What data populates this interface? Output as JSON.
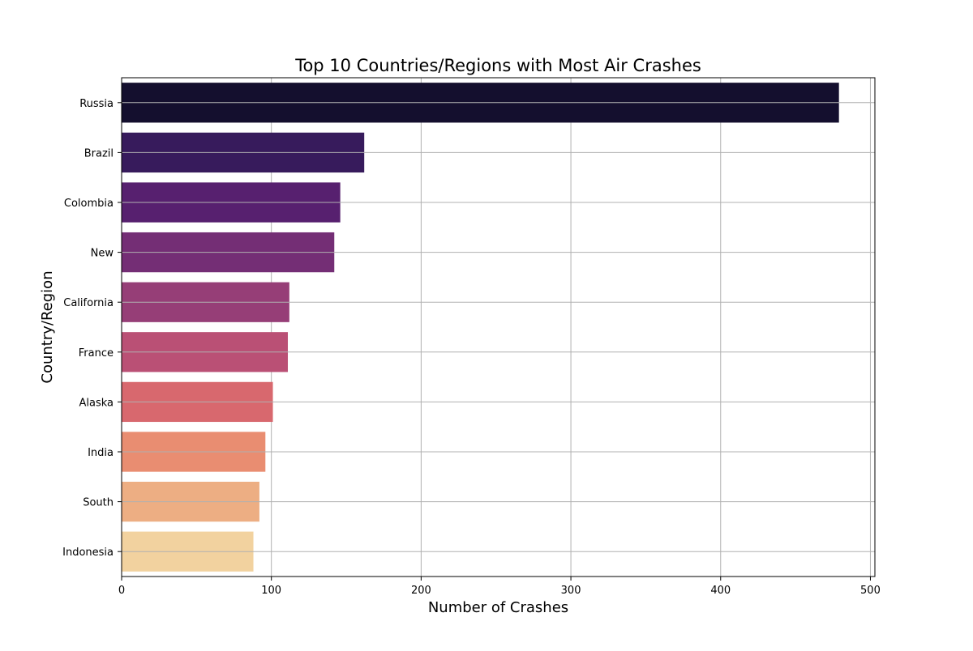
{
  "chart_data": {
    "type": "bar",
    "orientation": "horizontal",
    "title": "Top 10 Countries/Regions with Most Air Crashes",
    "xlabel": "Number of Crashes",
    "ylabel": "Country/Region",
    "categories": [
      "Russia",
      "Brazil",
      "Colombia",
      "New",
      "California",
      "France",
      "Alaska",
      "India",
      "South",
      "Indonesia"
    ],
    "values": [
      479,
      162,
      146,
      142,
      112,
      111,
      101,
      96,
      92,
      88
    ],
    "colors": [
      "#140f2e",
      "#371b5c",
      "#57206f",
      "#742e75",
      "#963e77",
      "#ba5075",
      "#d8686e",
      "#e98d71",
      "#edae83",
      "#f2d29f"
    ],
    "xlim": [
      0,
      503
    ],
    "xticks": [
      "0",
      "100",
      "200",
      "300",
      "400",
      "500"
    ],
    "grid": true,
    "legend": "none"
  }
}
